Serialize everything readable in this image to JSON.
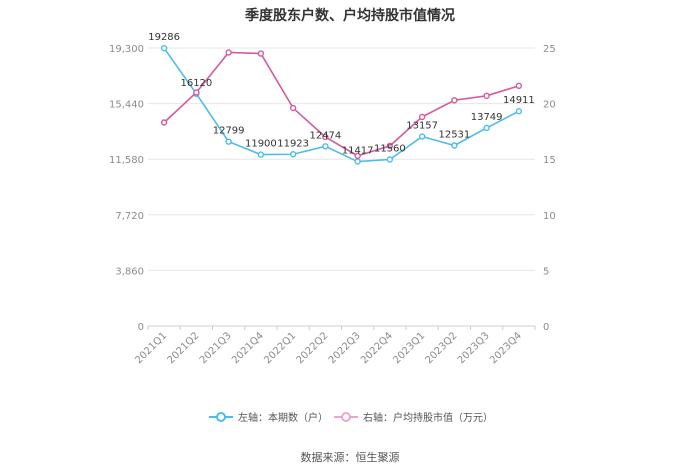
{
  "chart_data": {
    "type": "line",
    "title": "季度股东户数、户均持股市值情况",
    "categories": [
      "2021Q1",
      "2021Q2",
      "2021Q3",
      "2021Q4",
      "2022Q1",
      "2022Q2",
      "2022Q3",
      "2022Q4",
      "2023Q1",
      "2023Q2",
      "2023Q3",
      "2023Q4"
    ],
    "y_left": {
      "min": 0,
      "max": 19300,
      "ticks": [
        0,
        3860,
        7720,
        11580,
        15440,
        19300
      ],
      "tick_labels": [
        "0",
        "3,860",
        "7,720",
        "11,580",
        "15,440",
        "19,300"
      ]
    },
    "y_right": {
      "min": 0,
      "max": 25,
      "ticks": [
        0,
        5,
        10,
        15,
        20,
        25
      ],
      "tick_labels": [
        "0",
        "5",
        "10",
        "15",
        "20",
        "25"
      ]
    },
    "series": [
      {
        "name": "左轴：本期数（户）",
        "axis": "left",
        "color": "#4bbde8",
        "values": [
          19286,
          16120,
          12799,
          11900,
          11923,
          12474,
          11417,
          11560,
          13157,
          12531,
          13749,
          14911
        ],
        "labels": [
          "19286",
          "16120",
          "12799",
          "11900",
          "11923",
          "12474",
          "11417",
          "11560",
          "13157",
          "12531",
          "13749",
          "14911"
        ]
      },
      {
        "name": "右轴：户均持股市值（万元）",
        "axis": "right",
        "color": "#d45a9e",
        "values": [
          18.3,
          21.0,
          24.6,
          24.5,
          19.6,
          17.0,
          15.3,
          16.2,
          18.8,
          20.3,
          20.7,
          21.6
        ]
      }
    ],
    "grid": true,
    "legend_position": "bottom",
    "source": "数据来源：恒生聚源"
  }
}
